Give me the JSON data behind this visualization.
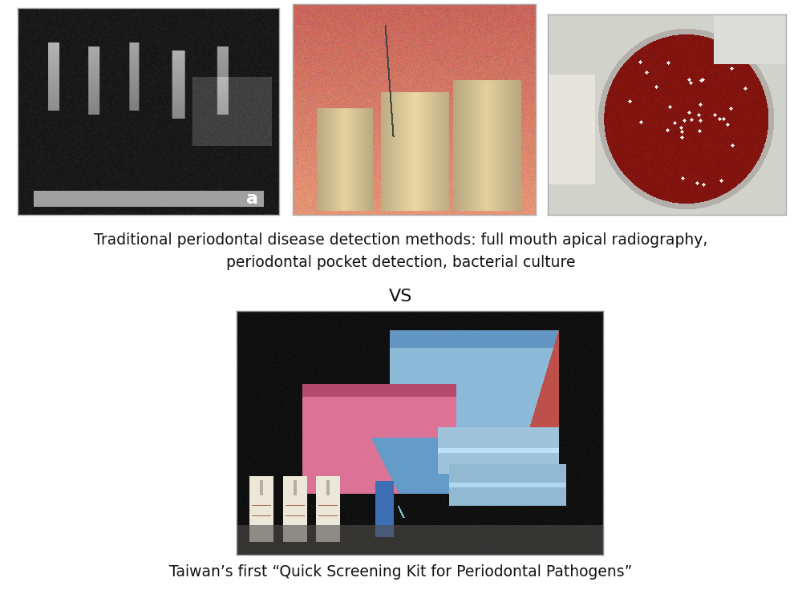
{
  "bg_color": "#ffffff",
  "top_text_line1": "Traditional periodontal disease detection methods: full mouth apical radiography,",
  "top_text_line2": "periodontal pocket detection, bacterial culture",
  "vs_text": "VS",
  "bottom_text": "Taiwan’s first “Quick Screening Kit for Periodontal Pathogens”",
  "fig_width": 10.0,
  "fig_height": 7.56,
  "font_size_caption": 13.5,
  "font_size_vs": 16,
  "font_size_bottom": 13.5
}
